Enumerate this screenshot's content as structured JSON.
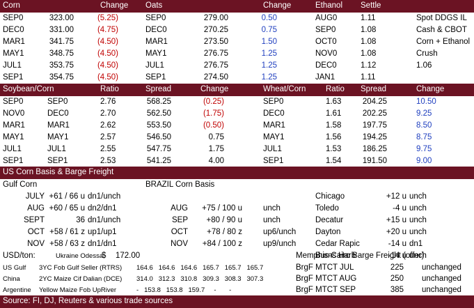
{
  "sec1": {
    "headers": [
      "Corn",
      "Change",
      "Oats",
      "Change",
      "Ethanol",
      "Settle"
    ],
    "rows": [
      {
        "c1": "SEP0",
        "c2": "323.00",
        "c3": "(5.25)",
        "c4": "SEP0",
        "c5": "279.00",
        "c6": "0.50",
        "c7": "AUG0",
        "c8": "1.11",
        "c9": "Spot DDGS IL"
      },
      {
        "c1": "DEC0",
        "c2": "331.00",
        "c3": "(4.75)",
        "c4": "DEC0",
        "c5": "270.25",
        "c6": "0.75",
        "c7": "SEP0",
        "c8": "1.08",
        "c9": "Cash & CBOT"
      },
      {
        "c1": "MAR1",
        "c2": "341.75",
        "c3": "(4.50)",
        "c4": "MAR1",
        "c5": "273.50",
        "c6": "1.50",
        "c7": "OCT0",
        "c8": "1.08",
        "c9": "Corn + Ethanol"
      },
      {
        "c1": "MAY1",
        "c2": "348.75",
        "c3": "(4.50)",
        "c4": "MAY1",
        "c5": "276.75",
        "c6": "1.25",
        "c7": "NOV0",
        "c8": "1.08",
        "c9": "Crush"
      },
      {
        "c1": "JUL1",
        "c2": "353.75",
        "c3": "(4.50)",
        "c4": "JUL1",
        "c5": "276.75",
        "c6": "1.25",
        "c7": "DEC0",
        "c8": "1.12",
        "c9": "1.06"
      },
      {
        "c1": "SEP1",
        "c2": "354.75",
        "c3": "(4.50)",
        "c4": "SEP1",
        "c5": "274.50",
        "c6": "1.25",
        "c7": "JAN1",
        "c8": "1.11",
        "c9": ""
      }
    ]
  },
  "sec2": {
    "headers": [
      "Soybean/Corn",
      "Ratio",
      "Spread",
      "Change",
      "Wheat/Corn",
      "Ratio",
      "Spread",
      "Change"
    ],
    "rows": [
      {
        "c1": "SEP0",
        "c2": "SEP0",
        "c3": "2.76",
        "c4": "568.25",
        "c5": "(0.25)",
        "c6": "SEP0",
        "c7": "1.63",
        "c8": "204.25",
        "c9": "10.50"
      },
      {
        "c1": "NOV0",
        "c2": "DEC0",
        "c3": "2.70",
        "c4": "562.50",
        "c5": "(1.75)",
        "c6": "DEC0",
        "c7": "1.61",
        "c8": "202.25",
        "c9": "9.25"
      },
      {
        "c1": "MAR1",
        "c2": "MAR1",
        "c3": "2.62",
        "c4": "553.50",
        "c5": "(0.50)",
        "c6": "MAR1",
        "c7": "1.58",
        "c8": "197.75",
        "c9": "8.50"
      },
      {
        "c1": "MAY1",
        "c2": "MAY1",
        "c3": "2.57",
        "c4": "546.50",
        "c5": "0.75",
        "c6": "MAY1",
        "c7": "1.56",
        "c8": "194.25",
        "c9": "8.75"
      },
      {
        "c1": "JUL1",
        "c2": "JUL1",
        "c3": "2.55",
        "c4": "547.75",
        "c5": "1.75",
        "c6": "JUL1",
        "c7": "1.53",
        "c8": "186.25",
        "c9": "9.75"
      },
      {
        "c1": "SEP1",
        "c2": "SEP1",
        "c3": "2.53",
        "c4": "541.25",
        "c5": "4.00",
        "c6": "SEP1",
        "c7": "1.54",
        "c8": "191.50",
        "c9": "9.00"
      }
    ]
  },
  "sec3": {
    "title": "US Corn Basis & Barge Freight",
    "gulf_title": "Gulf Corn",
    "brazil_title": "BRAZIL Corn Basis",
    "rows": [
      {
        "g1": "JULY",
        "g2": "+61 / 66 u",
        "g3": "dn1/unch",
        "b1": "",
        "b2": "",
        "b3": "",
        "l1": "Chicago",
        "l2": "+12 u",
        "l3": "unch"
      },
      {
        "g1": "AUG",
        "g2": "+60 / 65 u",
        "g3": "dn2/dn1",
        "b1": "AUG",
        "b2": "+75 / 100 u",
        "b3": "unch",
        "l1": "Toledo",
        "l2": "-4 u",
        "l3": "unch"
      },
      {
        "g1": "SEPT",
        "g2": "36",
        "g3": "dn1/unch",
        "b1": "SEP",
        "b2": "+80 / 90 u",
        "b3": "unch",
        "l1": "Decatur",
        "l2": "+15 u",
        "l3": "unch"
      },
      {
        "g1": "OCT",
        "g2": "+58 / 61 z",
        "g3": "up1/up1",
        "b1": "OCT",
        "b2": "+78 / 80 z",
        "b3": "up6/unch",
        "l1": "Dayton",
        "l2": "+20 u",
        "l3": "unch"
      },
      {
        "g1": "NOV",
        "g2": "+58 / 63 z",
        "g3": "dn1/dn1",
        "b1": "NOV",
        "b2": "+84 / 100 z",
        "b3": "up9/unch",
        "l1": "Cedar Rapic",
        "l2": "-14 u",
        "l3": "dn1"
      },
      {
        "g1": "",
        "g2": "",
        "g3": "",
        "b1": "",
        "b2": "",
        "b3": "",
        "l1": "Burns Harb",
        "l2": "-14 u",
        "l3": "unch"
      }
    ]
  },
  "sec4": {
    "usd_label": "USD/ton:",
    "odessa_label": "Ukraine Odessa",
    "odessa_cur": "$",
    "odessa_value": "172.00",
    "memphis_title": "Memphis-Cairo Barge Freight (offer)",
    "rows": [
      {
        "origin": "US Gulf",
        "desc": "3YC Fob Gulf Seller (RTRS)",
        "vals": "164.6   164.6   164.6   165.7   165.7   165.7",
        "f1": "BrgF MTCT JUL",
        "f2": "225",
        "f3": "unchanged"
      },
      {
        "origin": "China",
        "desc": "2YC Maize Cif Dalian (DCE)",
        "vals": "314.0   312.3   310.8   309.3   308.3   307.3",
        "f1": "BrgF MTCT AUG",
        "f2": "250",
        "f3": "unchanged"
      },
      {
        "origin": "Argentine",
        "desc": "Yellow Maize Fob UpRiver",
        "vals": "-   153.8   153.8   159.7     -       -",
        "f1": "BrgF MTCT SEP",
        "f2": "385",
        "f3": "unchanged"
      }
    ]
  },
  "footer": "Source: FI, DJ, Reuters & various trade sources",
  "colors": {
    "header_bg": "#6b1323",
    "negative": "#c00000",
    "positive": "#1f3fbf"
  }
}
